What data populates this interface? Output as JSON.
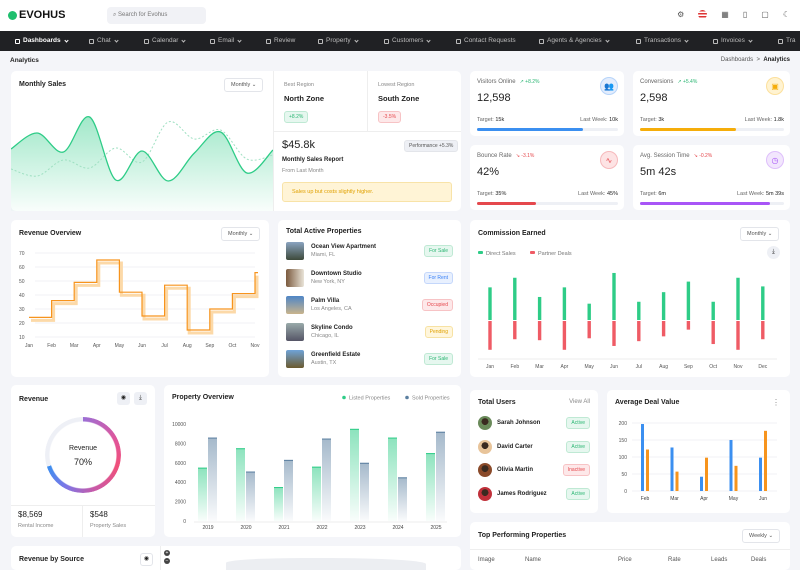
{
  "header": {
    "brand": "EVOHUS",
    "search_placeholder": "Search for Evohus",
    "icons": [
      "gear-icon",
      "flag-us-icon",
      "grid-icon",
      "bell-icon",
      "message-icon",
      "moon-icon"
    ]
  },
  "nav": [
    "Dashboards",
    "Chat",
    "Calendar",
    "Email",
    "Review",
    "Property",
    "Customers",
    "Contact Requests",
    "Agents & Agencies",
    "Transactions",
    "Invoices",
    "Tra"
  ],
  "breadcrumb": {
    "page": "Analytics",
    "parent": "Dashboards",
    "sep": ">",
    "current": "Analytics"
  },
  "monthly_sales": {
    "title": "Monthly Sales",
    "period": "Monthly",
    "best_label": "Best Region",
    "best": "North Zone",
    "best_change": "+8.2%",
    "lowest_label": "Lowest Region",
    "lowest": "South Zone",
    "lowest_change": "-3.5%",
    "amount": "$45.8k",
    "performance": "Performance +5.3%",
    "report": "Monthly Sales Report",
    "sub": "From Last Month",
    "alert": "Sales up but costs slightly higher."
  },
  "kpis": [
    {
      "label": "Visitors Online",
      "change": "+8.2%",
      "value": "12,598",
      "target": "15k",
      "last_week": "10k",
      "progress": 0.75,
      "color": "#3b8ff0",
      "icon": "users-icon"
    },
    {
      "label": "Conversions",
      "change": "+5.4%",
      "value": "2,598",
      "target": "3k",
      "last_week": "1.8k",
      "progress": 0.67,
      "color": "#f5ad0a",
      "icon": "bag-icon"
    },
    {
      "label": "Bounce Rate",
      "change": "-3.1%",
      "value": "42%",
      "target": "35%",
      "last_week": "45%",
      "progress": 0.42,
      "color": "#e5484d",
      "icon": "pulse-icon"
    },
    {
      "label": "Avg. Session Time",
      "change": "-0.2%",
      "value": "5m 42s",
      "target": "6m",
      "last_week": "5m 39s",
      "progress": 0.9,
      "color": "#a855f7",
      "icon": "clock-icon"
    }
  ],
  "kpi_text": {
    "target": "Target:",
    "last_week": "Last Week:"
  },
  "revenue_overview": {
    "title": "Revenue Overview",
    "period": "Monthly"
  },
  "active_properties": {
    "title": "Total Active Properties",
    "items": [
      {
        "name": "Ocean View Apartment",
        "location": "Miami, FL",
        "status": "For Sale",
        "kind": "g"
      },
      {
        "name": "Downtown Studio",
        "location": "New York, NY",
        "status": "For Rent",
        "kind": "b"
      },
      {
        "name": "Palm Villa",
        "location": "Los Angeles, CA",
        "status": "Occupied",
        "kind": "r"
      },
      {
        "name": "Skyline Condo",
        "location": "Chicago, IL",
        "status": "Pending",
        "kind": "y"
      },
      {
        "name": "Greenfield Estate",
        "location": "Austin, TX",
        "status": "For Sale",
        "kind": "g"
      }
    ]
  },
  "commission": {
    "title": "Commission Earned",
    "period": "Monthly"
  },
  "revenue": {
    "title": "Revenue",
    "center_label": "Revenue",
    "percent": "70%",
    "rental": "$8,569",
    "rental_label": "Rental Income",
    "sales": "$548",
    "sales_label": "Property Sales"
  },
  "property_overview": {
    "title": "Property Overview"
  },
  "users": {
    "title": "Total Users",
    "view_all": "View All",
    "items": [
      {
        "name": "Sarah Johnson",
        "status": "Active",
        "kind": "g"
      },
      {
        "name": "David Carter",
        "status": "Active",
        "kind": "g"
      },
      {
        "name": "Olivia Martin",
        "status": "Inactive",
        "kind": "r"
      },
      {
        "name": "James Rodriguez",
        "status": "Active",
        "kind": "g"
      }
    ]
  },
  "avg_deal": {
    "title": "Average Deal Value"
  },
  "top_properties": {
    "title": "Top Performing Properties",
    "period": "Weekly",
    "columns": [
      "Image",
      "Name",
      "Price",
      "Rate",
      "Leads",
      "Deals"
    ]
  },
  "revenue_source": {
    "title": "Revenue by Source"
  },
  "chart_data": [
    {
      "id": "monthly_sales",
      "type": "area",
      "series": [
        {
          "values": [
            62,
            78,
            59,
            94,
            31,
            60,
            30,
            58,
            79,
            38,
            61
          ]
        },
        {
          "values": [
            42,
            35,
            51,
            43,
            63,
            49,
            89,
            72,
            81,
            52,
            56
          ]
        }
      ],
      "colors": [
        "#2ecc87",
        "#9fe0c2"
      ]
    },
    {
      "id": "revenue_overview",
      "type": "line",
      "step": true,
      "categories": [
        "Jan",
        "Feb",
        "Mar",
        "Apr",
        "May",
        "Jun",
        "Jul",
        "Aug",
        "Sep",
        "Oct",
        "Nov"
      ],
      "values": [
        24,
        36,
        49,
        65,
        42,
        25,
        47,
        15,
        30,
        41,
        56
      ],
      "ylim": [
        10,
        70
      ],
      "yticks": [
        10,
        20,
        30,
        40,
        50,
        60,
        70
      ],
      "color": "#f7941d",
      "grid": true
    },
    {
      "id": "commission",
      "type": "bar",
      "categories": [
        "Jan",
        "Feb",
        "Mar",
        "Apr",
        "May",
        "Jun",
        "Jul",
        "Aug",
        "Sep",
        "Oct",
        "Nov",
        "Dec"
      ],
      "series": [
        {
          "name": "Direct Sales",
          "values": [
            68,
            88,
            48,
            68,
            34,
            98,
            38,
            58,
            80,
            38,
            88,
            70
          ],
          "color": "#2ecc87"
        },
        {
          "name": "Partner Deals",
          "values": [
            -60,
            -38,
            -40,
            -60,
            -36,
            -52,
            -42,
            -32,
            -18,
            -48,
            -60,
            -38
          ],
          "color": "#ef5b65"
        }
      ],
      "legend": "top-left"
    },
    {
      "id": "property_overview",
      "type": "bar",
      "categories": [
        "2019",
        "2020",
        "2021",
        "2022",
        "2023",
        "2024",
        "2025"
      ],
      "series": [
        {
          "name": "Listed Properties",
          "values": [
            5500,
            7500,
            3500,
            5600,
            9500,
            8600,
            7000
          ],
          "color": "#2ecc87"
        },
        {
          "name": "Sold Properties",
          "values": [
            8600,
            5100,
            6300,
            8500,
            6000,
            4500,
            9200
          ],
          "color": "#5b7fa0"
        }
      ],
      "ylim": [
        0,
        10000
      ],
      "yticks": [
        0,
        2000,
        4000,
        6000,
        8000,
        10000
      ],
      "legend": "top-right"
    },
    {
      "id": "avg_deal",
      "type": "bar",
      "categories": [
        "Feb",
        "Mar",
        "Apr",
        "May",
        "Jun"
      ],
      "series": [
        {
          "values": [
            197,
            128,
            42,
            150,
            98
          ],
          "color": "#3b8ff0"
        },
        {
          "values": [
            122,
            57,
            98,
            74,
            177
          ],
          "color": "#f7941d"
        }
      ],
      "ylim": [
        0,
        200
      ],
      "yticks": [
        0,
        50,
        100,
        150,
        200
      ],
      "grid": true
    },
    {
      "id": "revenue_donut",
      "type": "pie",
      "values": [
        70
      ],
      "unit": "%"
    }
  ]
}
